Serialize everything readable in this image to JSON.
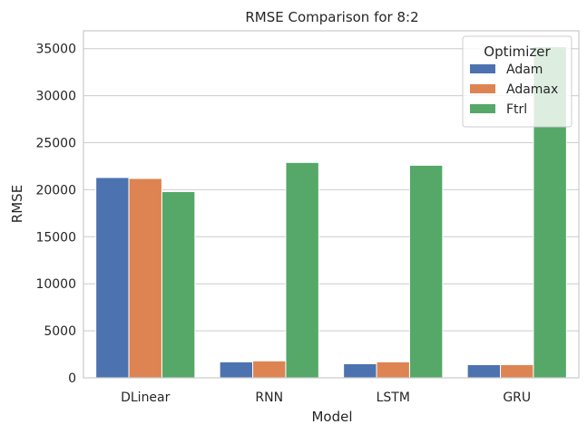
{
  "chart_data": {
    "type": "bar",
    "title": "RMSE Comparison for 8:2",
    "xlabel": "Model",
    "ylabel": "RMSE",
    "categories": [
      "DLinear",
      "RNN",
      "LSTM",
      "GRU"
    ],
    "series": [
      {
        "name": "Adam",
        "color": "#4c72b0",
        "values": [
          21300,
          1700,
          1500,
          1400
        ]
      },
      {
        "name": "Adamax",
        "color": "#dd8452",
        "values": [
          21200,
          1800,
          1700,
          1400
        ]
      },
      {
        "name": "Ftrl",
        "color": "#55a868",
        "values": [
          19800,
          22900,
          22600,
          35200
        ]
      }
    ],
    "ylim": [
      0,
      36900
    ],
    "yticks": [
      0,
      5000,
      10000,
      15000,
      20000,
      25000,
      30000,
      35000
    ],
    "ytick_labels": [
      "0",
      "5000",
      "10000",
      "15000",
      "20000",
      "25000",
      "30000",
      "35000"
    ],
    "grid": true,
    "legend": {
      "title": "Optimizer",
      "placement": "top-right"
    }
  }
}
